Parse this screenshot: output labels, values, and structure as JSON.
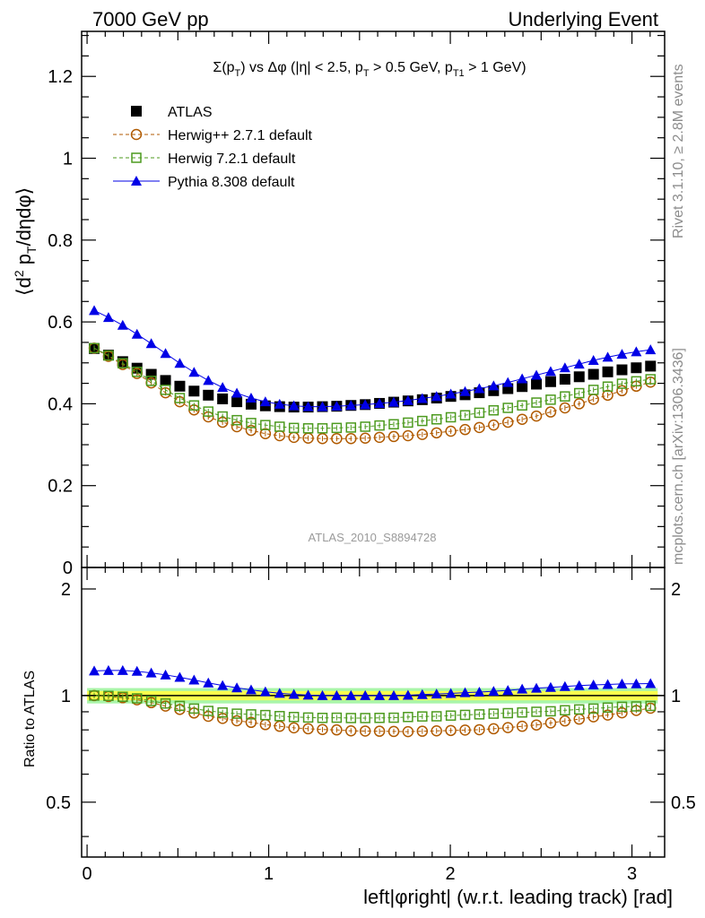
{
  "header": {
    "left": "7000 GeV pp",
    "right": "Underlying Event"
  },
  "side_labels": {
    "rivet": "Rivet 3.1.10, ≥ 2.8M events",
    "mcplots": "mcplots.cern.ch [arXiv:1306.3436]"
  },
  "watermark": "ATLAS_2010_S8894728",
  "plot_title": "Σ(p_T) vs Δφ (|η| < 2.5, p_T > 0.5 GeV, p_T1 > 1 GeV)",
  "legend": [
    "ATLAS",
    "Herwig++ 2.7.1 default",
    "Herwig 7.2.1 default",
    "Pythia 8.308 default"
  ],
  "colors": {
    "ATLAS": "#000000",
    "Herwig++ 2.7.1 default": "#b05a00",
    "Herwig 7.2.1 default": "#4c9a1e",
    "Pythia 8.308 default": "#0000e6",
    "band_inner": "#fbff4d",
    "band_outer": "#a9f5a9"
  },
  "chart_data": [
    {
      "type": "scatter",
      "title": "Σ(p_T) vs Δφ (|η| < 2.5, p_T > 0.5 GeV, p_T1 > 1 GeV)",
      "xlabel": "left|φright| (w.r.t. leading track) [rad]",
      "ylabel": "⟨d² p_T/dηdφ⟩",
      "xlim": [
        -0.03,
        3.18
      ],
      "ylim": [
        0,
        1.31
      ],
      "x_ticks": [
        0,
        1,
        2,
        3
      ],
      "y_ticks": [
        0,
        0.2,
        0.4,
        0.6,
        0.8,
        1,
        1.2
      ],
      "y_tick_labels": [
        "0",
        "0.2",
        "0.4",
        "0.6",
        "0.8",
        "1",
        "1.2"
      ],
      "legend_position": "top-left",
      "grid": false,
      "x": [
        0.0393,
        0.1178,
        0.1963,
        0.2749,
        0.3534,
        0.432,
        0.5105,
        0.589,
        0.6676,
        0.7461,
        0.8247,
        0.9032,
        0.9817,
        1.0603,
        1.1388,
        1.2174,
        1.2959,
        1.3744,
        1.453,
        1.5315,
        1.6101,
        1.6886,
        1.7671,
        1.8457,
        1.9242,
        2.0028,
        2.0813,
        2.1598,
        2.2384,
        2.3169,
        2.3955,
        2.474,
        2.5525,
        2.6311,
        2.7096,
        2.7882,
        2.8667,
        2.9452,
        3.0238,
        3.1023
      ],
      "series": [
        {
          "name": "ATLAS",
          "marker": "filled-square",
          "values": [
            0.535,
            0.519,
            0.503,
            0.487,
            0.472,
            0.457,
            0.443,
            0.431,
            0.421,
            0.412,
            0.405,
            0.399,
            0.395,
            0.393,
            0.392,
            0.392,
            0.393,
            0.394,
            0.396,
            0.398,
            0.401,
            0.404,
            0.407,
            0.41,
            0.414,
            0.418,
            0.422,
            0.427,
            0.432,
            0.437,
            0.442,
            0.448,
            0.454,
            0.46,
            0.466,
            0.472,
            0.478,
            0.483,
            0.488,
            0.492
          ]
        },
        {
          "name": "Herwig++ 2.7.1 default",
          "marker": "open-circle",
          "line": "dashed",
          "values": [
            0.536,
            0.516,
            0.496,
            0.474,
            0.451,
            0.427,
            0.405,
            0.385,
            0.368,
            0.355,
            0.344,
            0.335,
            0.327,
            0.322,
            0.318,
            0.316,
            0.315,
            0.315,
            0.315,
            0.316,
            0.318,
            0.32,
            0.322,
            0.325,
            0.329,
            0.333,
            0.337,
            0.342,
            0.348,
            0.355,
            0.362,
            0.37,
            0.38,
            0.39,
            0.4,
            0.411,
            0.421,
            0.432,
            0.443,
            0.453
          ]
        },
        {
          "name": "Herwig 7.2.1 default",
          "marker": "open-square",
          "line": "dashed",
          "values": [
            0.536,
            0.518,
            0.499,
            0.478,
            0.456,
            0.434,
            0.414,
            0.396,
            0.381,
            0.369,
            0.36,
            0.353,
            0.348,
            0.344,
            0.341,
            0.34,
            0.34,
            0.341,
            0.342,
            0.344,
            0.347,
            0.35,
            0.354,
            0.358,
            0.362,
            0.367,
            0.372,
            0.378,
            0.384,
            0.39,
            0.396,
            0.403,
            0.41,
            0.418,
            0.426,
            0.434,
            0.442,
            0.449,
            0.455,
            0.46
          ]
        },
        {
          "name": "Pythia 8.308 default",
          "marker": "filled-triangle",
          "line": "solid",
          "values": [
            0.628,
            0.611,
            0.592,
            0.57,
            0.547,
            0.523,
            0.499,
            0.477,
            0.457,
            0.44,
            0.426,
            0.414,
            0.405,
            0.399,
            0.395,
            0.393,
            0.393,
            0.394,
            0.396,
            0.398,
            0.401,
            0.404,
            0.408,
            0.413,
            0.418,
            0.424,
            0.43,
            0.437,
            0.444,
            0.452,
            0.461,
            0.47,
            0.479,
            0.488,
            0.497,
            0.506,
            0.514,
            0.521,
            0.527,
            0.532
          ]
        }
      ]
    },
    {
      "type": "scatter",
      "title": "",
      "xlabel": "left|φright| (w.r.t. leading track) [rad]",
      "ylabel": "Ratio to ATLAS",
      "xlim": [
        -0.03,
        3.18
      ],
      "ylim": [
        0.35,
        2.3
      ],
      "y_scale": "log",
      "x_ticks": [
        0,
        1,
        2,
        3
      ],
      "y_ticks": [
        0.5,
        1,
        2
      ],
      "y_tick_labels": [
        "0.5",
        "1",
        "2"
      ],
      "reference_line": 1,
      "bands": {
        "inner": [
          0.97,
          1.03
        ],
        "outer": [
          0.95,
          1.05
        ]
      },
      "grid": false,
      "x": [
        0.0393,
        0.1178,
        0.1963,
        0.2749,
        0.3534,
        0.432,
        0.5105,
        0.589,
        0.6676,
        0.7461,
        0.8247,
        0.9032,
        0.9817,
        1.0603,
        1.1388,
        1.2174,
        1.2959,
        1.3744,
        1.453,
        1.5315,
        1.6101,
        1.6886,
        1.7671,
        1.8457,
        1.9242,
        2.0028,
        2.0813,
        2.1598,
        2.2384,
        2.3169,
        2.3955,
        2.474,
        2.5525,
        2.6311,
        2.7096,
        2.7882,
        2.8667,
        2.9452,
        3.0238,
        3.1023
      ],
      "series": [
        {
          "name": "Herwig++ 2.7.1 default",
          "marker": "open-circle",
          "line": "dashed",
          "values": [
            1.0,
            0.994,
            0.986,
            0.973,
            0.955,
            0.934,
            0.914,
            0.893,
            0.874,
            0.862,
            0.849,
            0.84,
            0.828,
            0.819,
            0.811,
            0.806,
            0.802,
            0.8,
            0.795,
            0.794,
            0.793,
            0.792,
            0.791,
            0.793,
            0.795,
            0.797,
            0.799,
            0.801,
            0.806,
            0.812,
            0.819,
            0.826,
            0.837,
            0.848,
            0.858,
            0.871,
            0.881,
            0.894,
            0.908,
            0.921
          ]
        },
        {
          "name": "Herwig 7.2.1 default",
          "marker": "open-square",
          "line": "dashed",
          "values": [
            1.0,
            0.998,
            0.992,
            0.982,
            0.966,
            0.95,
            0.935,
            0.919,
            0.905,
            0.896,
            0.889,
            0.885,
            0.881,
            0.875,
            0.87,
            0.867,
            0.865,
            0.866,
            0.864,
            0.864,
            0.865,
            0.866,
            0.87,
            0.873,
            0.874,
            0.878,
            0.882,
            0.885,
            0.889,
            0.892,
            0.896,
            0.9,
            0.903,
            0.909,
            0.914,
            0.919,
            0.925,
            0.93,
            0.932,
            0.935
          ]
        },
        {
          "name": "Pythia 8.308 default",
          "marker": "filled-triangle",
          "line": "solid",
          "values": [
            1.174,
            1.177,
            1.177,
            1.171,
            1.159,
            1.144,
            1.126,
            1.107,
            1.086,
            1.068,
            1.052,
            1.038,
            1.025,
            1.015,
            1.008,
            1.003,
            1.0,
            1.0,
            1.0,
            1.0,
            1.0,
            1.0,
            1.002,
            1.007,
            1.01,
            1.014,
            1.019,
            1.023,
            1.028,
            1.034,
            1.043,
            1.049,
            1.055,
            1.061,
            1.067,
            1.072,
            1.075,
            1.079,
            1.08,
            1.081
          ]
        }
      ]
    }
  ]
}
